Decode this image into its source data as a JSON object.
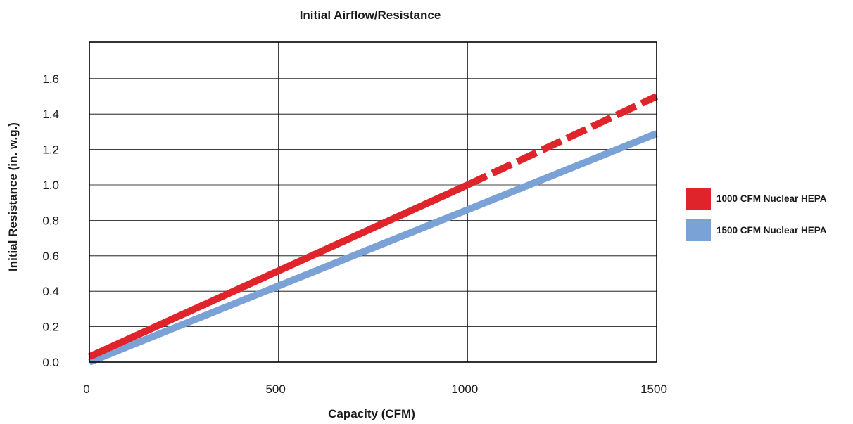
{
  "chart_data": {
    "type": "line",
    "title": "Initial Airflow/Resistance",
    "xlabel": "Capacity (CFM)",
    "ylabel": "Initial Resistance (in. w.g.)",
    "xlim": [
      0,
      1500
    ],
    "ylim": [
      0,
      1.8
    ],
    "x_ticks": [
      "0",
      "500",
      "1000",
      "1500"
    ],
    "y_ticks": [
      "0.0",
      "0.2",
      "0.4",
      "0.6",
      "0.8",
      "1.0",
      "1.2",
      "1.4",
      "1.6"
    ],
    "grid": true,
    "legend_position": "right",
    "series": [
      {
        "name": "1000 CFM Nuclear HEPA",
        "color": "#e0242b",
        "solid": [
          [
            0,
            0.03
          ],
          [
            1000,
            1.0
          ]
        ],
        "dashed": [
          [
            1000,
            1.0
          ],
          [
            1500,
            1.5
          ]
        ]
      },
      {
        "name": "1500 CFM Nuclear HEPA",
        "color": "#7aa2d6",
        "solid": [
          [
            0,
            0.0
          ],
          [
            1500,
            1.29
          ]
        ]
      }
    ]
  }
}
